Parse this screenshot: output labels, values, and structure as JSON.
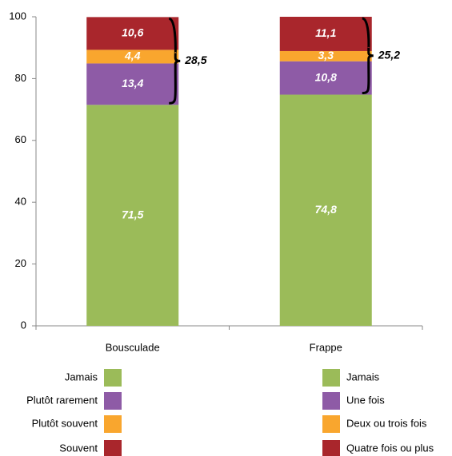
{
  "chart_data": {
    "type": "bar",
    "stacked": true,
    "categories": [
      "Bousculade",
      "Frappe"
    ],
    "series": [
      {
        "name": "Jamais",
        "name_right": "Jamais",
        "color": "#9bbb59",
        "values": [
          71.5,
          74.8
        ],
        "value_labels": [
          "71,5",
          "74,8"
        ]
      },
      {
        "name": "Plutôt rarement",
        "name_right": "Une fois",
        "color": "#8e5ba6",
        "values": [
          13.4,
          10.8
        ],
        "value_labels": [
          "13,4",
          "10,8"
        ]
      },
      {
        "name": "Plutôt souvent",
        "name_right": "Deux ou trois fois",
        "color": "#f9a62e",
        "values": [
          4.4,
          3.3
        ],
        "value_labels": [
          "4,4",
          "3,3"
        ]
      },
      {
        "name": "Souvent",
        "name_right": "Quatre fois ou plus",
        "color": "#a9262c",
        "values": [
          10.6,
          11.1
        ],
        "value_labels": [
          "10,6",
          "11,1"
        ]
      }
    ],
    "brace_totals": [
      {
        "value": 28.5,
        "label": "28,5"
      },
      {
        "value": 25.2,
        "label": "25,2"
      }
    ],
    "ylim": [
      0,
      100
    ],
    "yticks": [
      0,
      20,
      40,
      60,
      80,
      100
    ],
    "grid": false
  }
}
